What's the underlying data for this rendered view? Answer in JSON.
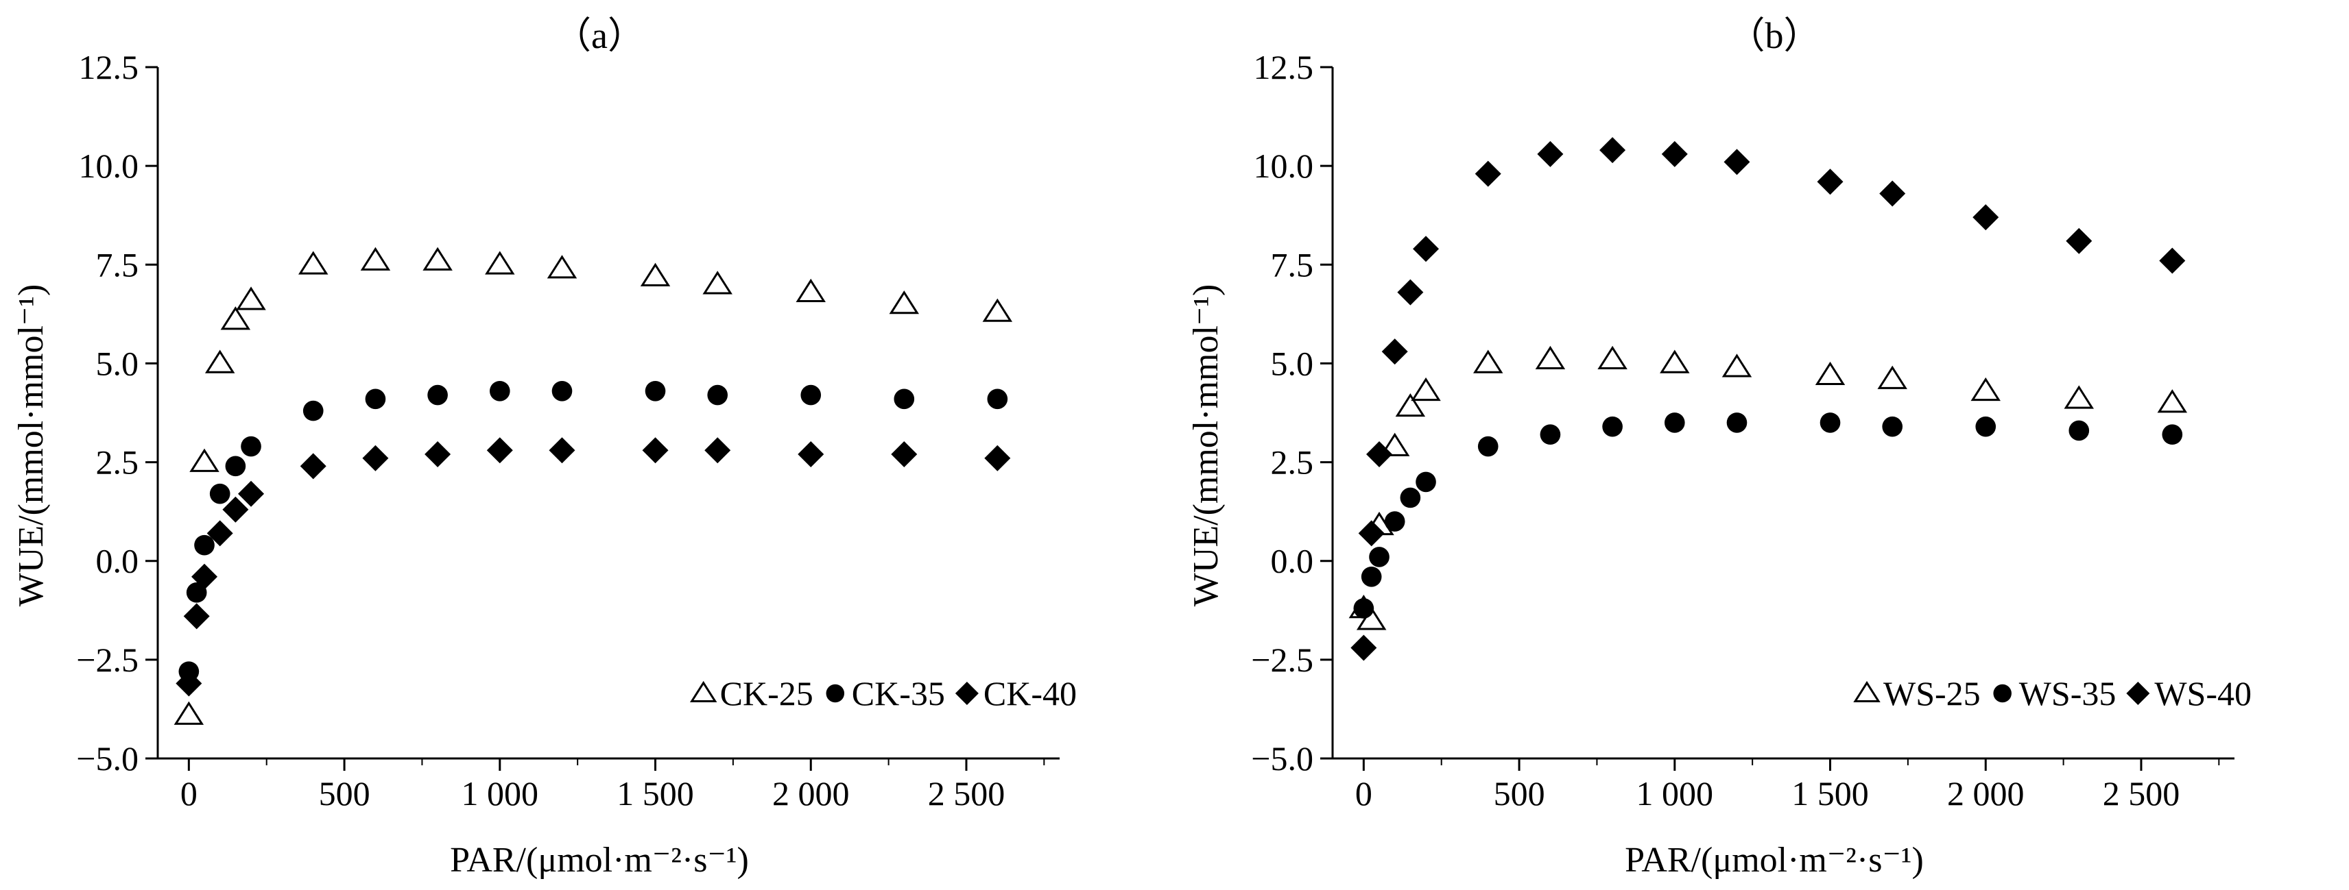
{
  "chart_data": [
    {
      "type": "scatter",
      "title": "（a）",
      "xlabel": "PAR/(μmol·m⁻²·s⁻¹)",
      "ylabel": "WUE/(mmol·mmol⁻¹)",
      "xlim": [
        -100,
        2800
      ],
      "ylim": [
        -5.0,
        12.5
      ],
      "xticks": [
        0,
        500,
        1000,
        1500,
        2000,
        2500
      ],
      "xtick_labels": [
        "0",
        "500",
        "1 000",
        "1 500",
        "2 000",
        "2 500"
      ],
      "yticks": [
        -5.0,
        -2.5,
        0.0,
        2.5,
        5.0,
        7.5,
        10.0,
        12.5
      ],
      "ytick_labels": [
        "−5.0",
        "−2.5",
        "0.0",
        "2.5",
        "5.0",
        "7.5",
        "10.0",
        "12.5"
      ],
      "grid": false,
      "legend_position": "bottom-right",
      "x": [
        0,
        25,
        50,
        100,
        150,
        200,
        400,
        600,
        800,
        1000,
        1200,
        1500,
        1700,
        2000,
        2300,
        2600
      ],
      "series": [
        {
          "name": "CK-25",
          "marker": "open-triangle",
          "values": [
            -3.9,
            null,
            2.5,
            5.0,
            6.1,
            6.6,
            7.5,
            7.6,
            7.6,
            7.5,
            7.4,
            7.2,
            7.0,
            6.8,
            6.5,
            6.3
          ]
        },
        {
          "name": "CK-35",
          "marker": "filled-circle",
          "values": [
            -2.8,
            -0.8,
            0.4,
            1.7,
            2.4,
            2.9,
            3.8,
            4.1,
            4.2,
            4.3,
            4.3,
            4.3,
            4.2,
            4.2,
            4.1,
            4.1
          ]
        },
        {
          "name": "CK-40",
          "marker": "filled-diamond",
          "values": [
            -3.1,
            -1.4,
            -0.4,
            0.7,
            1.3,
            1.7,
            2.4,
            2.6,
            2.7,
            2.8,
            2.8,
            2.8,
            2.8,
            2.7,
            2.7,
            2.6
          ]
        }
      ]
    },
    {
      "type": "scatter",
      "title": "（b）",
      "xlabel": "PAR/(μmol·m⁻²·s⁻¹)",
      "ylabel": "WUE/(mmol·mmol⁻¹)",
      "xlim": [
        -100,
        2800
      ],
      "ylim": [
        -5.0,
        12.5
      ],
      "xticks": [
        0,
        500,
        1000,
        1500,
        2000,
        2500
      ],
      "xtick_labels": [
        "0",
        "500",
        "1 000",
        "1 500",
        "2 000",
        "2 500"
      ],
      "yticks": [
        -5.0,
        -2.5,
        0.0,
        2.5,
        5.0,
        7.5,
        10.0,
        12.5
      ],
      "ytick_labels": [
        "−5.0",
        "−2.5",
        "0.0",
        "2.5",
        "5.0",
        "7.5",
        "10.0",
        "12.5"
      ],
      "grid": false,
      "legend_position": "bottom-right",
      "x": [
        0,
        25,
        50,
        100,
        150,
        200,
        400,
        600,
        800,
        1000,
        1200,
        1500,
        1700,
        2000,
        2300,
        2600
      ],
      "series": [
        {
          "name": "WS-25",
          "marker": "open-triangle",
          "values": [
            -1.2,
            -1.5,
            0.9,
            2.9,
            3.9,
            4.3,
            5.0,
            5.1,
            5.1,
            5.0,
            4.9,
            4.7,
            4.6,
            4.3,
            4.1,
            4.0
          ]
        },
        {
          "name": "WS-35",
          "marker": "filled-circle",
          "values": [
            -1.2,
            -0.4,
            0.1,
            1.0,
            1.6,
            2.0,
            2.9,
            3.2,
            3.4,
            3.5,
            3.5,
            3.5,
            3.4,
            3.4,
            3.3,
            3.2
          ]
        },
        {
          "name": "WS-40",
          "marker": "filled-diamond",
          "values": [
            -2.2,
            0.7,
            2.7,
            5.3,
            6.8,
            7.9,
            9.8,
            10.3,
            10.4,
            10.3,
            10.1,
            9.6,
            9.3,
            8.7,
            8.1,
            7.6
          ]
        }
      ]
    }
  ]
}
